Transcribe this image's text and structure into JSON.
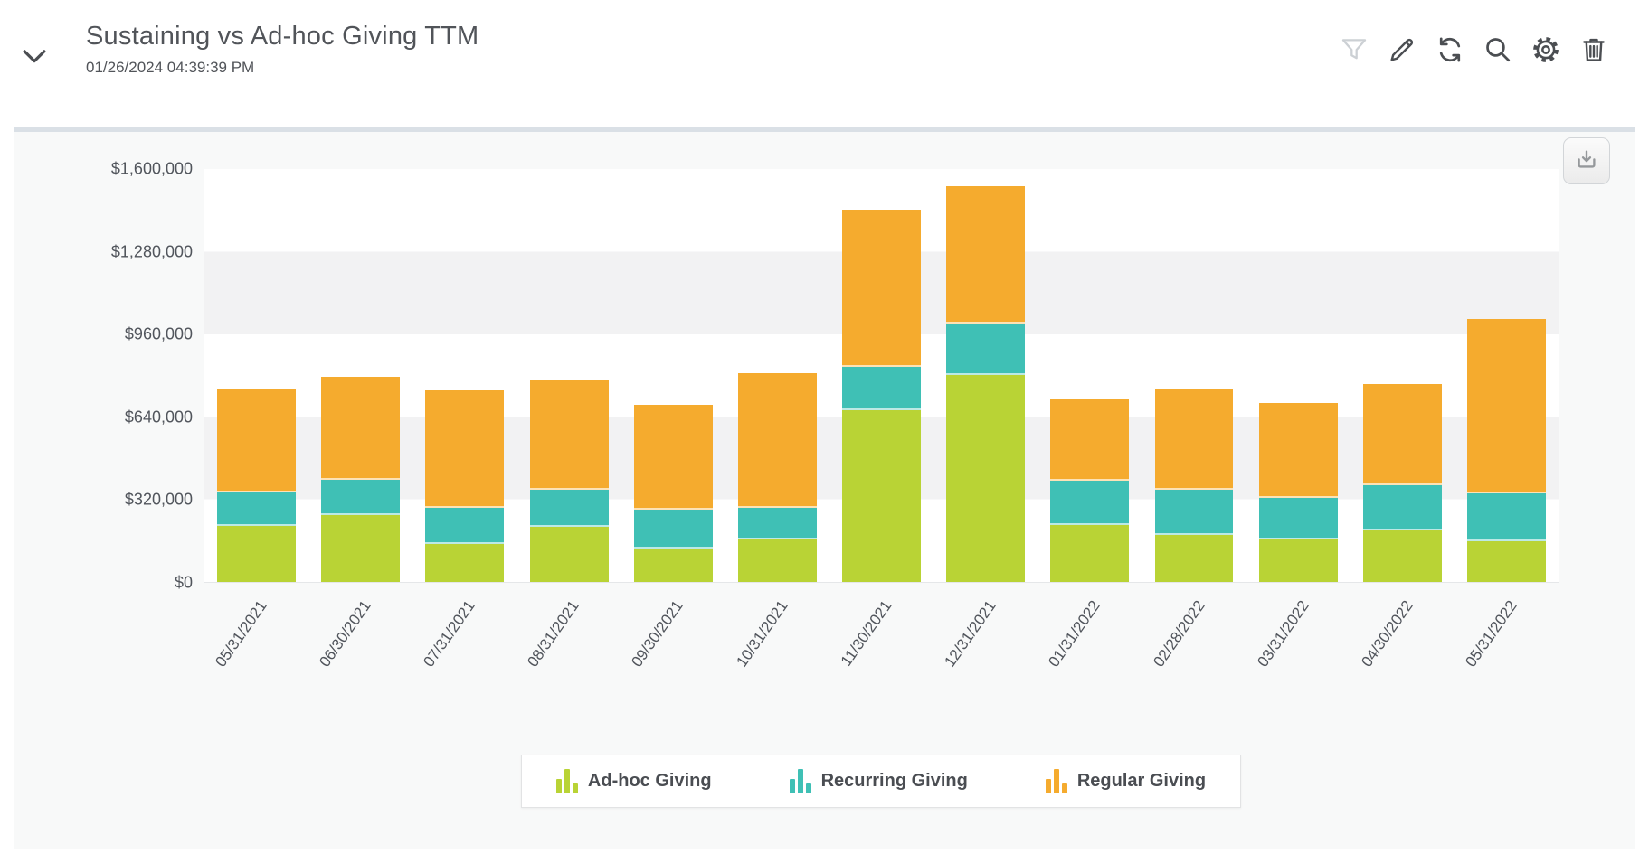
{
  "header": {
    "title": "Sustaining vs Ad-hoc Giving TTM",
    "timestamp": "01/26/2024 04:39:39 PM",
    "collapse_icon": "chevron-down-icon",
    "toolbar_icons": [
      "funnel-icon",
      "pencil-icon",
      "refresh-icon",
      "magnifier-icon",
      "gear-icon",
      "trash-icon"
    ]
  },
  "chart_panel": {
    "download_icon": "download-icon"
  },
  "colors": {
    "adhoc_green": "#b9d335",
    "recurring_teal": "#3fc0b5",
    "regular_orange": "#f5ab2e",
    "band_gray": "#f2f2f3",
    "band_white": "#ffffff",
    "filter_icon_disabled": "#ccd0d4",
    "icon_dark": "#4b4e52"
  },
  "chart_data": {
    "type": "bar",
    "stacked": true,
    "title": "Sustaining vs Ad-hoc Giving TTM",
    "xlabel": "",
    "ylabel": "",
    "ylim": [
      0,
      1600000
    ],
    "y_ticks_top_to_bottom": [
      "$1,600,000",
      "$1,280,000",
      "$960,000",
      "$640,000",
      "$320,000",
      "$0"
    ],
    "grid": "alternating-horizontal-bands",
    "band_colors": [
      "#ffffff",
      "#f2f2f3"
    ],
    "legend_position": "bottom",
    "legend_icon": "mini-bar-chart-icon",
    "categories": [
      "05/31/2021",
      "06/30/2021",
      "07/31/2021",
      "08/31/2021",
      "09/30/2021",
      "10/31/2021",
      "11/30/2021",
      "12/31/2021",
      "01/31/2022",
      "02/28/2022",
      "03/31/2022",
      "04/30/2022",
      "05/31/2022"
    ],
    "series": [
      {
        "name": "Ad-hoc Giving",
        "color": "#b9d335",
        "values": [
          217000,
          258000,
          147000,
          213000,
          129000,
          164000,
          664000,
          803000,
          220000,
          182000,
          164000,
          199000,
          157000
        ]
      },
      {
        "name": "Recurring Giving",
        "color": "#3fc0b5",
        "values": [
          129000,
          137000,
          140000,
          143000,
          150000,
          122000,
          168000,
          199000,
          171000,
          175000,
          161000,
          175000,
          185000
        ]
      },
      {
        "name": "Regular Giving",
        "color": "#f5ab2e",
        "values": [
          401000,
          401000,
          454000,
          426000,
          409000,
          524000,
          611000,
          531000,
          318000,
          388000,
          367000,
          394000,
          678000
        ]
      }
    ]
  }
}
